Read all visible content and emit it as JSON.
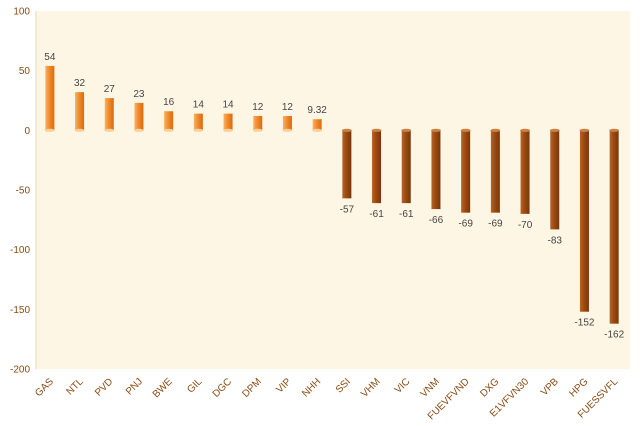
{
  "chart_data": {
    "type": "bar",
    "title": "",
    "xlabel": "",
    "ylabel": "",
    "ylim": [
      -200,
      100
    ],
    "yticks": [
      100,
      50,
      0,
      -50,
      -100,
      -150,
      -200
    ],
    "grid": false,
    "categories": [
      "GAS",
      "NTL",
      "PVD",
      "PNJ",
      "BWE",
      "GIL",
      "DGC",
      "DPM",
      "VIP",
      "NHH",
      "SSI",
      "VHM",
      "VIC",
      "VNM",
      "FUEVFVND",
      "DXG",
      "E1VFVN30",
      "VPB",
      "HPG",
      "FUESSVFL"
    ],
    "values": [
      54,
      32,
      27,
      23,
      16,
      14,
      14,
      12,
      12,
      9.32,
      -57,
      -61,
      -61,
      -66,
      -69,
      -69,
      -70,
      -83,
      -152,
      -162
    ],
    "value_labels": [
      "54",
      "32",
      "27",
      "23",
      "16",
      "14",
      "14",
      "12",
      "12",
      "9.32",
      "-57",
      "-61",
      "-61",
      "-66",
      "-69",
      "-69",
      "-70",
      "-83",
      "-152",
      "-162"
    ],
    "colors": {
      "plot_background": "#fef6e4",
      "positive_bar": "#f28a2a",
      "negative_bar": "#9a4a10",
      "axis_text": "#8a4a12",
      "value_text": "#444444"
    }
  }
}
